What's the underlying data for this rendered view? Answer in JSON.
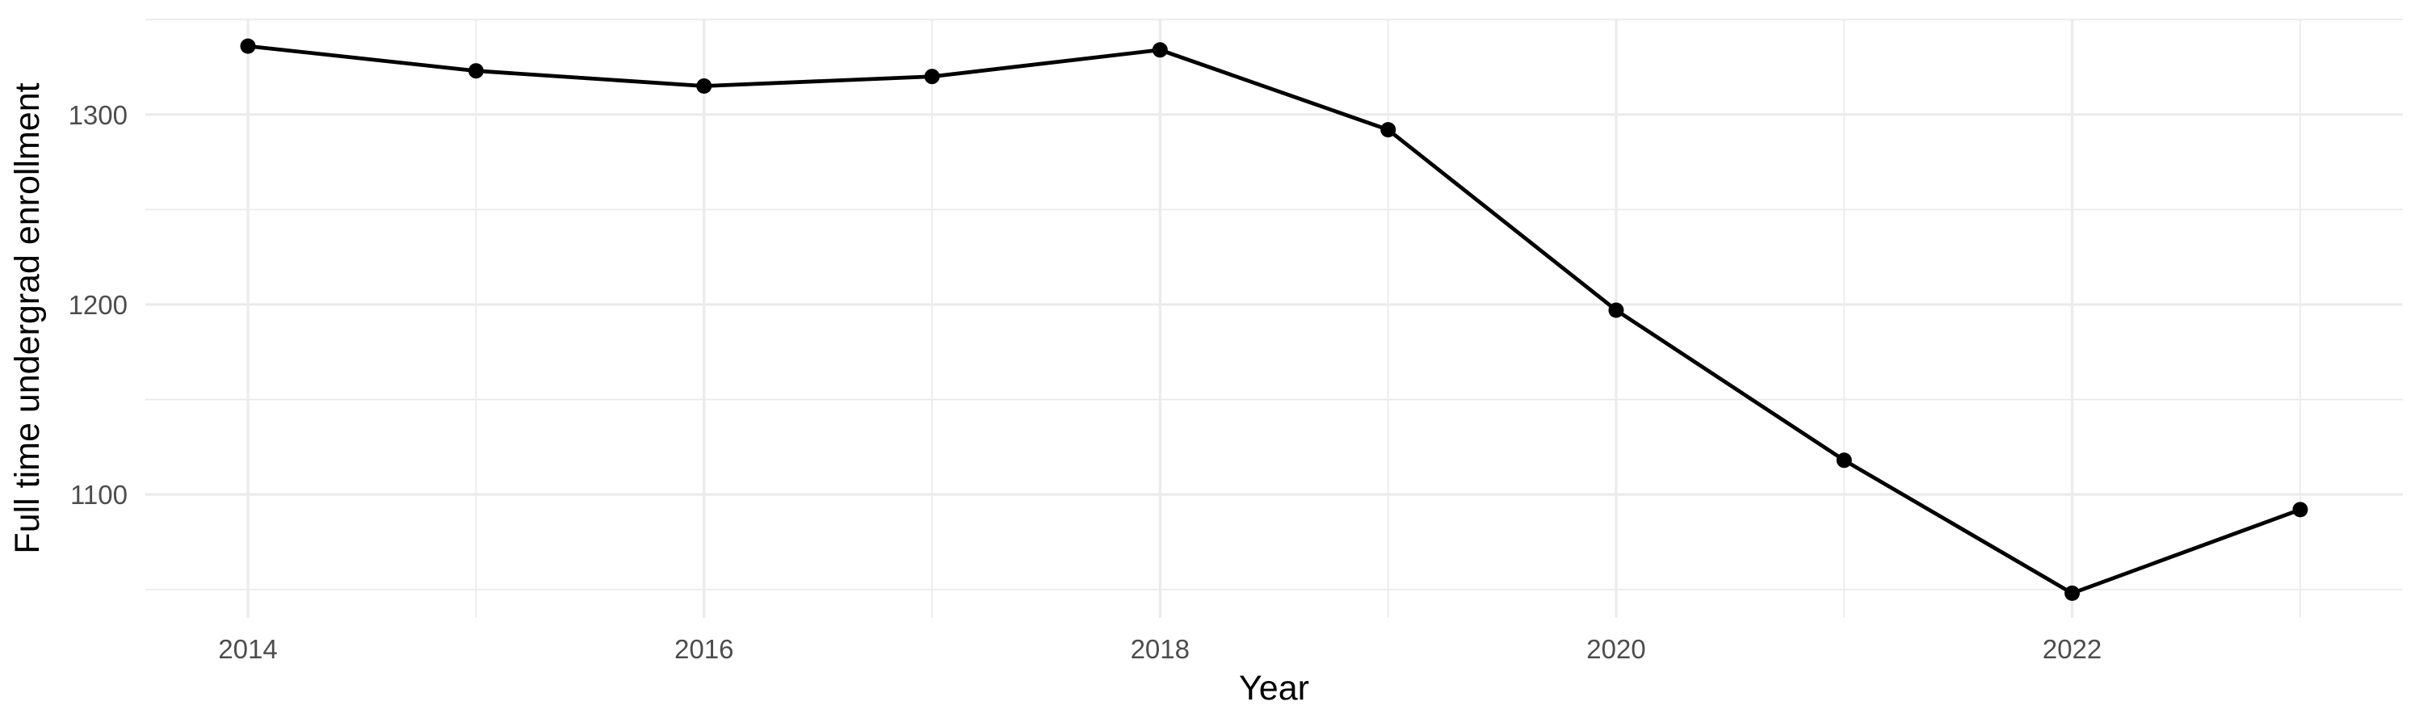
{
  "chart_data": {
    "type": "line",
    "title": "",
    "xlabel": "Year",
    "ylabel": "Full time undergrad enrollment",
    "x": [
      2014,
      2015,
      2016,
      2017,
      2018,
      2019,
      2020,
      2021,
      2022,
      2023
    ],
    "series": [
      {
        "name": "Full time undergrad enrollment",
        "values": [
          1336,
          1323,
          1315,
          1320,
          1334,
          1292,
          1197,
          1118,
          1048,
          1092
        ]
      }
    ],
    "x_tick_labels": [
      "2014",
      "2016",
      "2018",
      "2020",
      "2022"
    ],
    "x_ticks_major": [
      2014,
      2016,
      2018,
      2020,
      2022
    ],
    "x_ticks_minor": [
      2015,
      2017,
      2019,
      2021,
      2023
    ],
    "y_tick_labels": [
      "1100",
      "1200",
      "1300"
    ],
    "y_ticks_major": [
      1100,
      1200,
      1300
    ],
    "y_ticks_minor": [
      1050,
      1150,
      1250,
      1350
    ],
    "xlim": [
      2013.55,
      2023.45
    ],
    "ylim": [
      1035,
      1350.5
    ],
    "grid": true,
    "legend": "none"
  },
  "colors": {
    "background": "#FFFFFF",
    "grid": "#EBEBEB",
    "tick_label": "#4D4D4D",
    "axis_title": "#000000",
    "line": "#000000",
    "point": "#000000"
  }
}
